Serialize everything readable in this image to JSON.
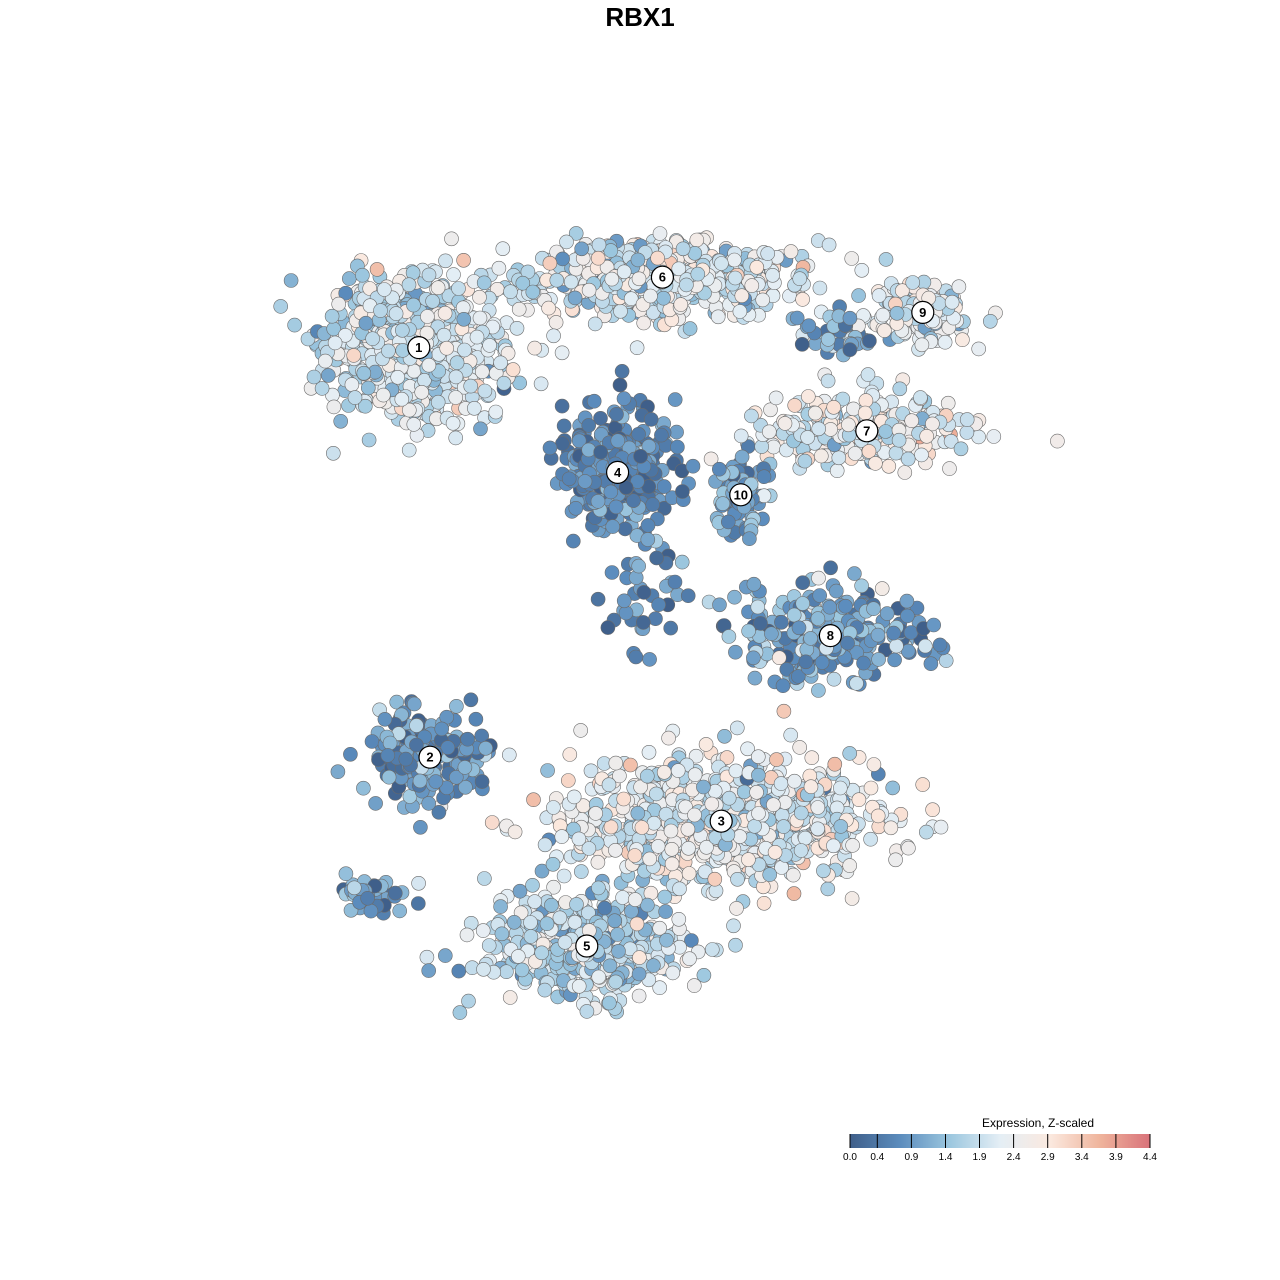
{
  "chart_data": {
    "type": "scatter",
    "title": "RBX1",
    "xlabel": "",
    "ylabel": "",
    "grid": false,
    "point_color_scale": {
      "title": "Expression, Z-scaled",
      "min": 0.0,
      "max": 4.4,
      "ticks": [
        "0.0",
        "0.4",
        "0.9",
        "1.4",
        "1.9",
        "2.4",
        "2.9",
        "3.4",
        "3.9",
        "4.4"
      ],
      "colors": [
        "#3f5f8a",
        "#5b8cbd",
        "#9cc7df",
        "#e4eef5",
        "#fbe9df",
        "#efb49c",
        "#d9727a"
      ]
    },
    "legend_placement": "bottom-right",
    "clusters": [
      {
        "label": "1",
        "x": -7.9,
        "y": 8.2,
        "sx": 3.1,
        "sy": 2.2,
        "n": 700,
        "mean": 2.05,
        "sd": 0.5
      },
      {
        "label": "6",
        "x": 0.8,
        "y": 10.4,
        "sx": 4.8,
        "sy": 1.1,
        "n": 650,
        "mean": 2.05,
        "sd": 0.55
      },
      {
        "label": "9",
        "x": 10.1,
        "y": 9.3,
        "sx": 1.7,
        "sy": 0.9,
        "n": 150,
        "mean": 2.2,
        "sd": 0.5
      },
      {
        "label": "7",
        "x": 8.1,
        "y": 5.6,
        "sx": 3.6,
        "sy": 1.2,
        "n": 260,
        "mean": 2.25,
        "sd": 0.55
      },
      {
        "label": "4",
        "x": -0.8,
        "y": 4.3,
        "sx": 1.8,
        "sy": 1.6,
        "n": 420,
        "mean": 0.65,
        "sd": 0.4
      },
      {
        "label": "10",
        "x": 3.6,
        "y": 3.6,
        "sx": 0.9,
        "sy": 1.2,
        "n": 90,
        "mean": 1.0,
        "sd": 0.5
      },
      {
        "label": "8",
        "x": 6.8,
        "y": -0.8,
        "sx": 3.4,
        "sy": 1.5,
        "n": 260,
        "mean": 1.0,
        "sd": 0.6
      },
      {
        "label": "2",
        "x": -7.5,
        "y": -4.6,
        "sx": 2.2,
        "sy": 1.4,
        "n": 220,
        "mean": 0.8,
        "sd": 0.5
      },
      {
        "label": "3",
        "x": 2.9,
        "y": -6.6,
        "sx": 5.6,
        "sy": 1.9,
        "n": 950,
        "mean": 2.25,
        "sd": 0.55
      },
      {
        "label": "5",
        "x": -1.9,
        "y": -10.5,
        "sx": 3.4,
        "sy": 1.6,
        "n": 520,
        "mean": 1.8,
        "sd": 0.55
      }
    ],
    "outlier_groups": [
      {
        "x": -9.7,
        "y": -8.9,
        "sx": 1.2,
        "sy": 0.6,
        "n": 45,
        "mean": 0.9,
        "sd": 0.55
      },
      {
        "x": 7.2,
        "y": 8.6,
        "sx": 1.6,
        "sy": 0.8,
        "n": 50,
        "mean": 1.2,
        "sd": 0.6
      },
      {
        "x": 0.3,
        "y": 0.2,
        "sx": 1.6,
        "sy": 1.6,
        "n": 40,
        "mean": 0.6,
        "sd": 0.4
      }
    ]
  }
}
